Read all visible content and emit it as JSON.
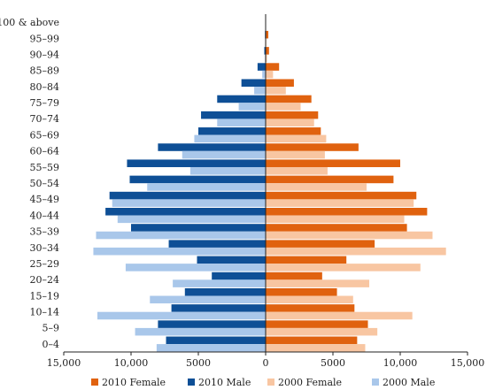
{
  "chart_data": {
    "type": "bar",
    "orientation": "horizontal",
    "layout": "population-pyramid",
    "categories": [
      "100 & above",
      "95–99",
      "90–94",
      "85–89",
      "80–84",
      "75–79",
      "70–74",
      "65–69",
      "60–64",
      "55–59",
      "50–54",
      "45–49",
      "40–44",
      "35–39",
      "30–34",
      "25–29",
      "20–24",
      "15–19",
      "10–14",
      "5–9",
      "0–4"
    ],
    "series": [
      {
        "name": "2010 Female",
        "side": "right",
        "color": "#E0620F",
        "values": [
          0,
          200,
          250,
          1000,
          2100,
          3400,
          3900,
          4100,
          6900,
          10000,
          9500,
          11200,
          12000,
          10500,
          8100,
          6000,
          4200,
          5300,
          6600,
          7600,
          6800
        ]
      },
      {
        "name": "2010 Male",
        "side": "left",
        "color": "#0E4F96",
        "values": [
          0,
          50,
          100,
          600,
          1800,
          3600,
          4800,
          5000,
          8000,
          10300,
          10100,
          11600,
          11900,
          10000,
          7200,
          5100,
          4000,
          6000,
          7000,
          8000,
          7400
        ]
      },
      {
        "name": "2000 Female",
        "side": "right",
        "color": "#F8C6A2",
        "values": [
          0,
          50,
          100,
          550,
          1500,
          2600,
          3600,
          4500,
          4400,
          4600,
          7500,
          11000,
          10300,
          12400,
          13400,
          11500,
          7700,
          6500,
          10900,
          8300,
          7400
        ]
      },
      {
        "name": "2000 Male",
        "side": "left",
        "color": "#A9C7EA",
        "values": [
          0,
          20,
          50,
          250,
          850,
          2000,
          3600,
          5300,
          6200,
          5600,
          8800,
          11400,
          11000,
          12600,
          12800,
          10400,
          6900,
          8600,
          12500,
          9700,
          8100
        ]
      }
    ],
    "xlim": [
      -15000,
      15000
    ],
    "x_ticks": [
      "15,000",
      "10,000",
      "5000",
      "0",
      "5000",
      "10,000",
      "15,000"
    ],
    "grid": false,
    "legend": "bottom"
  }
}
